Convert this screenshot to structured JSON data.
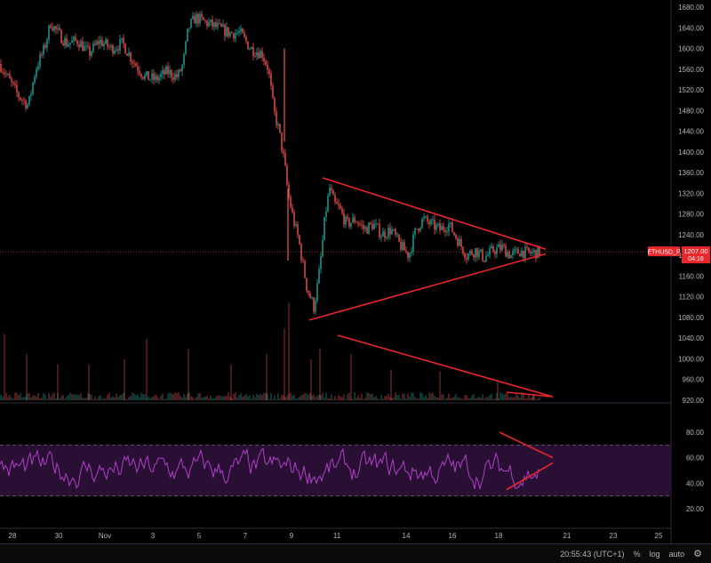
{
  "chart_data": [
    {
      "type": "candlestick",
      "series": [
        {
          "name": "ETHUSD_P"
        }
      ],
      "ylim": [
        920,
        1690
      ],
      "y_ticks": [
        "1680.00",
        "1640.00",
        "1600.00",
        "1560.00",
        "1520.00",
        "1480.00",
        "1440.00",
        "1400.00",
        "1360.00",
        "1320.00",
        "1280.00",
        "1240.00",
        "1200.00",
        "1160.00",
        "1120.00",
        "1080.00",
        "1040.00",
        "1000.00",
        "960.00",
        "920.00"
      ],
      "y_tick_values": [
        1680,
        1640,
        1600,
        1560,
        1520,
        1480,
        1440,
        1400,
        1360,
        1320,
        1280,
        1240,
        1200,
        1160,
        1120,
        1080,
        1040,
        1000,
        960,
        920
      ],
      "price_path": [
        [
          0,
          1570
        ],
        [
          10,
          1540
        ],
        [
          20,
          1510
        ],
        [
          32,
          1490
        ],
        [
          40,
          1560
        ],
        [
          50,
          1600
        ],
        [
          57,
          1650
        ],
        [
          65,
          1630
        ],
        [
          75,
          1610
        ],
        [
          88,
          1615
        ],
        [
          100,
          1590
        ],
        [
          112,
          1615
        ],
        [
          125,
          1600
        ],
        [
          138,
          1610
        ],
        [
          150,
          1575
        ],
        [
          163,
          1545
        ],
        [
          175,
          1540
        ],
        [
          188,
          1555
        ],
        [
          200,
          1545
        ],
        [
          206,
          1570
        ],
        [
          212,
          1640
        ],
        [
          220,
          1660
        ],
        [
          232,
          1650
        ],
        [
          245,
          1640
        ],
        [
          258,
          1630
        ],
        [
          270,
          1630
        ],
        [
          282,
          1600
        ],
        [
          295,
          1590
        ],
        [
          302,
          1560
        ],
        [
          308,
          1480
        ],
        [
          314,
          1440
        ],
        [
          320,
          1380
        ],
        [
          324,
          1320
        ],
        [
          330,
          1270
        ],
        [
          336,
          1230
        ],
        [
          341,
          1180
        ],
        [
          345,
          1140
        ],
        [
          349,
          1120
        ],
        [
          353,
          1100
        ],
        [
          358,
          1150
        ],
        [
          362,
          1210
        ],
        [
          366,
          1280
        ],
        [
          371,
          1330
        ],
        [
          376,
          1300
        ],
        [
          382,
          1290
        ],
        [
          390,
          1260
        ],
        [
          400,
          1270
        ],
        [
          410,
          1250
        ],
        [
          420,
          1260
        ],
        [
          430,
          1240
        ],
        [
          440,
          1250
        ],
        [
          450,
          1220
        ],
        [
          460,
          1200
        ],
        [
          468,
          1250
        ],
        [
          476,
          1270
        ],
        [
          485,
          1260
        ],
        [
          495,
          1250
        ],
        [
          505,
          1260
        ],
        [
          515,
          1230
        ],
        [
          525,
          1200
        ],
        [
          535,
          1210
        ],
        [
          545,
          1195
        ],
        [
          555,
          1210
        ],
        [
          565,
          1215
        ],
        [
          575,
          1200
        ],
        [
          585,
          1208
        ],
        [
          595,
          1204
        ],
        [
          607,
          1207
        ]
      ],
      "current_price_label": "1207.00",
      "countdown_label": "04:16",
      "symbol_label": "ETHUSD_P",
      "annotations": [
        {
          "type": "triangle",
          "color": "#e8262b",
          "upper": [
            [
              363,
              1350
            ],
            [
              614,
              1212
            ]
          ],
          "lower": [
            [
              348,
              1075
            ],
            [
              614,
              1203
            ]
          ]
        }
      ]
    },
    {
      "type": "bar",
      "series": [
        {
          "name": "Volume"
        }
      ],
      "values_note": "low volume bars with spikes",
      "spikes": [
        [
          5,
          0.65
        ],
        [
          30,
          0.45
        ],
        [
          65,
          0.35
        ],
        [
          100,
          0.35
        ],
        [
          140,
          0.4
        ],
        [
          165,
          0.6
        ],
        [
          212,
          0.5
        ],
        [
          260,
          0.35
        ],
        [
          300,
          0.45
        ],
        [
          320,
          0.7
        ],
        [
          325,
          0.95
        ],
        [
          350,
          0.4
        ],
        [
          360,
          0.5
        ],
        [
          395,
          0.45
        ],
        [
          440,
          0.3
        ],
        [
          495,
          0.28
        ],
        [
          560,
          0.18
        ],
        [
          600,
          0.05
        ]
      ],
      "annotations": [
        {
          "type": "arrow",
          "color": "#e8262b",
          "upper": [
            [
              380,
              -0.4
            ],
            [
              622,
              0.0
            ]
          ],
          "lower": [
            [
              570,
              0.05
            ],
            [
              622,
              0.0
            ]
          ]
        }
      ]
    },
    {
      "type": "line",
      "series": [
        {
          "name": "RSI",
          "color": "#b040c8"
        }
      ],
      "ylim": [
        5,
        100
      ],
      "y_ticks": [
        "80.00",
        "60.00",
        "40.00",
        "20.00"
      ],
      "y_tick_values": [
        80,
        60,
        40,
        20
      ],
      "band": [
        30,
        70
      ],
      "annotations": [
        {
          "type": "arrow",
          "color": "#e8262b",
          "upper": [
            [
              562,
              80
            ],
            [
              622,
              60
            ]
          ],
          "lower": [
            [
              570,
              35
            ],
            [
              622,
              56
            ]
          ]
        }
      ]
    }
  ],
  "x_axis": {
    "ticks": [
      [
        "28",
        14
      ],
      [
        "30",
        66
      ],
      [
        "Nov",
        118
      ],
      [
        "3",
        172
      ],
      [
        "5",
        224
      ],
      [
        "7",
        276
      ],
      [
        "9",
        328
      ],
      [
        "11",
        379
      ],
      [
        "14",
        457
      ],
      [
        "16",
        509
      ],
      [
        "18",
        561
      ],
      [
        "21",
        638
      ],
      [
        "23",
        690
      ],
      [
        "25",
        741
      ]
    ]
  },
  "status_bar": {
    "time": "20:55:43 (UTC+1)",
    "percent": "%",
    "log": "log",
    "auto": "auto",
    "settings_icon": "gear-icon"
  },
  "colors": {
    "up": "#26a69a",
    "down": "#ef5350",
    "annotation": "#e8262b",
    "rsi": "#b040c8",
    "rsi_band": "#2a0f35"
  }
}
